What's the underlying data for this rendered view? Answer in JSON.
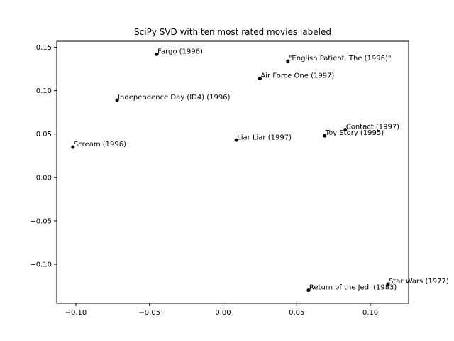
{
  "chart_data": {
    "type": "scatter",
    "title": "SciPy SVD with ten most rated movies labeled",
    "xlabel": "",
    "ylabel": "",
    "xlim": [
      -0.113,
      0.126
    ],
    "ylim": [
      -0.145,
      0.157
    ],
    "grid": false,
    "x_ticks": [
      -0.1,
      -0.05,
      0.0,
      0.05,
      0.1
    ],
    "x_tick_labels": [
      "−0.10",
      "−0.05",
      "0.00",
      "0.05",
      "0.10"
    ],
    "y_ticks": [
      -0.1,
      -0.05,
      0.0,
      0.05,
      0.1,
      0.15
    ],
    "y_tick_labels": [
      "−0.10",
      "−0.05",
      "0.00",
      "0.05",
      "0.10",
      "0.15"
    ],
    "points": [
      {
        "label": "Fargo (1996)",
        "x": -0.045,
        "y": 0.142
      },
      {
        "label": "\"English Patient, The (1996)\"",
        "x": 0.044,
        "y": 0.134
      },
      {
        "label": "Air Force One (1997)",
        "x": 0.025,
        "y": 0.114
      },
      {
        "label": "Independence Day (ID4) (1996)",
        "x": -0.072,
        "y": 0.089
      },
      {
        "label": "Contact (1997)",
        "x": 0.083,
        "y": 0.055
      },
      {
        "label": "Toy Story (1995)",
        "x": 0.069,
        "y": 0.048
      },
      {
        "label": "Liar Liar (1997)",
        "x": 0.009,
        "y": 0.043
      },
      {
        "label": "Scream (1996)",
        "x": -0.102,
        "y": 0.035
      },
      {
        "label": "Star Wars (1977)",
        "x": 0.112,
        "y": -0.123
      },
      {
        "label": "Return of the Jedi (1983)",
        "x": 0.058,
        "y": -0.13
      }
    ]
  }
}
